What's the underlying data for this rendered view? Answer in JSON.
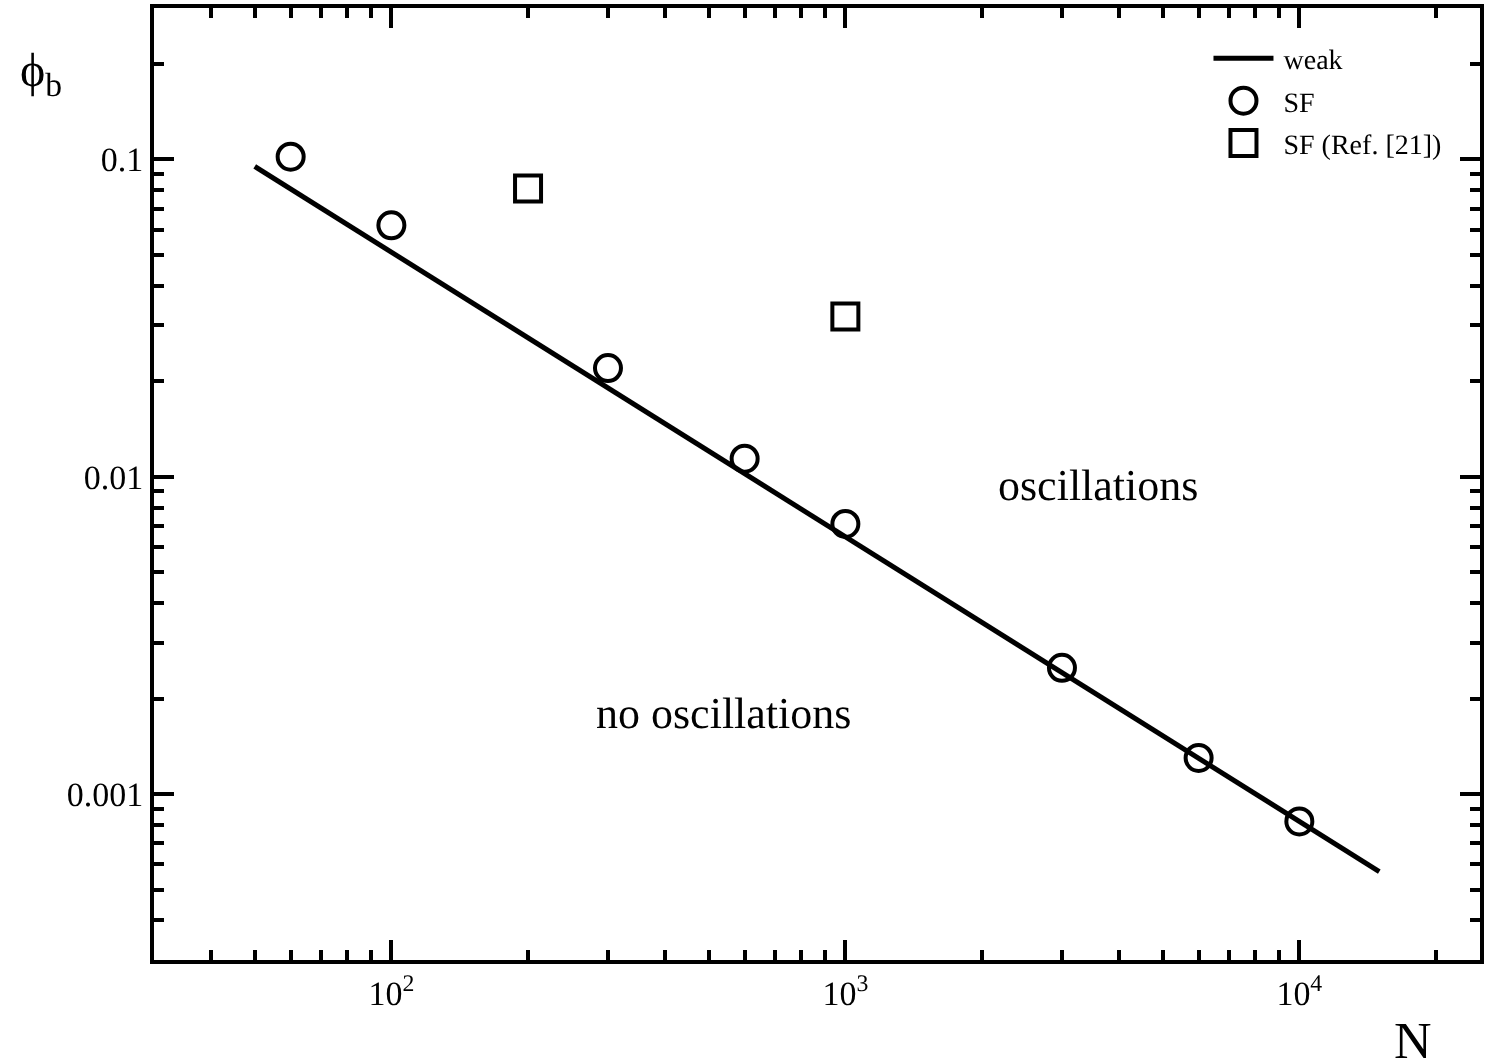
{
  "chart_data": {
    "type": "scatter",
    "xlabel": "N",
    "ylabel": "ϕ$_{b}$",
    "log": "xy",
    "xlim": [
      30,
      25000
    ],
    "ylim": [
      0.0003,
      0.3
    ],
    "xticks": [
      {
        "value": 40,
        "label": null
      },
      {
        "value": 50,
        "label": null
      },
      {
        "value": 60,
        "label": null
      },
      {
        "value": 70,
        "label": null
      },
      {
        "value": 80,
        "label": null
      },
      {
        "value": 90,
        "label": null
      },
      {
        "value": 100,
        "label": "10$^{2}$"
      },
      {
        "value": 200,
        "label": null
      },
      {
        "value": 300,
        "label": null
      },
      {
        "value": 400,
        "label": null
      },
      {
        "value": 500,
        "label": null
      },
      {
        "value": 600,
        "label": null
      },
      {
        "value": 700,
        "label": null
      },
      {
        "value": 800,
        "label": null
      },
      {
        "value": 900,
        "label": null
      },
      {
        "value": 1000,
        "label": "10$^{3}$"
      },
      {
        "value": 2000,
        "label": null
      },
      {
        "value": 3000,
        "label": null
      },
      {
        "value": 4000,
        "label": null
      },
      {
        "value": 5000,
        "label": null
      },
      {
        "value": 6000,
        "label": null
      },
      {
        "value": 7000,
        "label": null
      },
      {
        "value": 8000,
        "label": null
      },
      {
        "value": 9000,
        "label": null
      },
      {
        "value": 10000,
        "label": "10$^{4}$"
      },
      {
        "value": 20000,
        "label": null
      }
    ],
    "yticks": [
      {
        "value": 0.0004,
        "label": null
      },
      {
        "value": 0.0005,
        "label": null
      },
      {
        "value": 0.0006,
        "label": null
      },
      {
        "value": 0.0007,
        "label": null
      },
      {
        "value": 0.0008,
        "label": null
      },
      {
        "value": 0.0009,
        "label": null
      },
      0.001,
      {
        "value": 0.002,
        "label": null
      },
      {
        "value": 0.003,
        "label": null
      },
      {
        "value": 0.004,
        "label": null
      },
      {
        "value": 0.005,
        "label": null
      },
      {
        "value": 0.006,
        "label": null
      },
      {
        "value": 0.007,
        "label": null
      },
      {
        "value": 0.008,
        "label": null
      },
      {
        "value": 0.009,
        "label": null
      },
      0.01,
      {
        "value": 0.02,
        "label": null
      },
      {
        "value": 0.03,
        "label": null
      },
      {
        "value": 0.04,
        "label": null
      },
      {
        "value": 0.05,
        "label": null
      },
      {
        "value": 0.06,
        "label": null
      },
      {
        "value": 0.07,
        "label": null
      },
      {
        "value": 0.08,
        "label": null
      },
      {
        "value": 0.09,
        "label": null
      },
      0.1,
      {
        "value": 0.2,
        "label": null
      }
    ],
    "grid": false,
    "legend": "top right",
    "series": [
      {
        "name": "weak",
        "type": "line",
        "color": "#000000",
        "marker": "none",
        "line_style": "solid",
        "x": [
          50,
          15000
        ],
        "values": [
          0.095,
          0.00057
        ]
      },
      {
        "name": "SF",
        "color": "#000000",
        "marker": "circle",
        "x": [
          60,
          100,
          300,
          600,
          1000,
          3000,
          6000,
          10000
        ],
        "values": [
          0.102,
          0.062,
          0.022,
          0.0114,
          0.0071,
          0.0025,
          0.0013,
          0.00082
        ]
      },
      {
        "name": "SF (Ref. [21])",
        "color": "#000000",
        "marker": "square",
        "x": [
          200,
          1000
        ],
        "values": [
          0.081,
          0.032
        ]
      }
    ],
    "annotations": [
      "oscillations",
      "no oscillations"
    ]
  }
}
